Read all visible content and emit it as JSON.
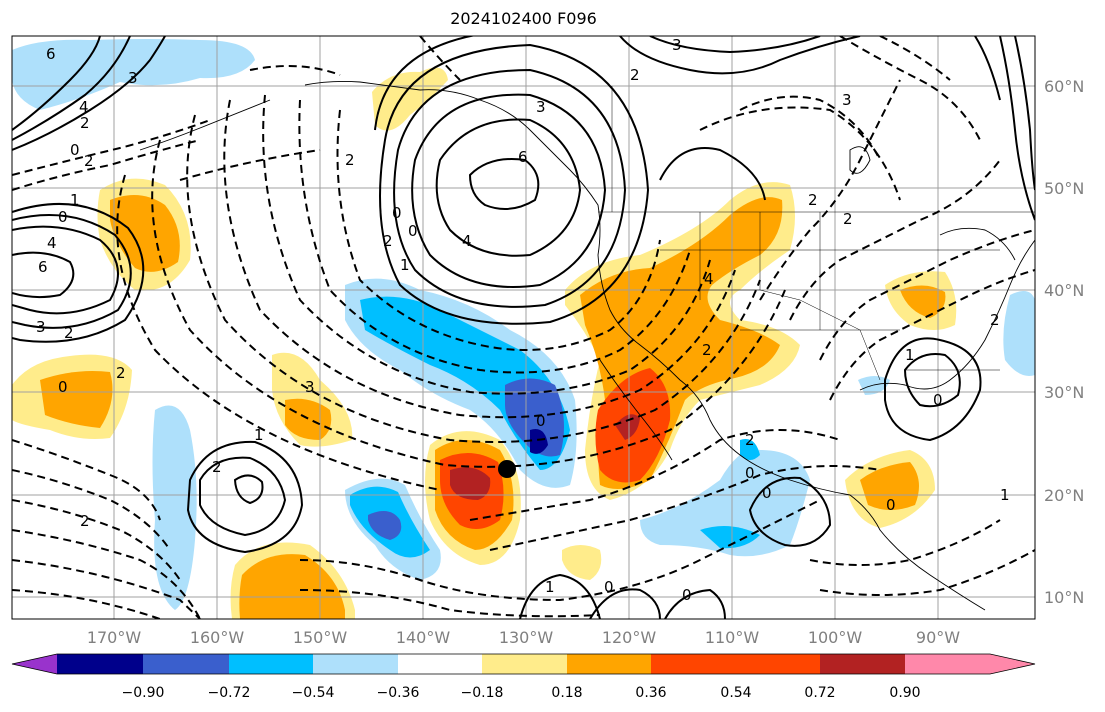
{
  "title": "2024102400 F096",
  "lon_labels": [
    "170°W",
    "160°W",
    "150°W",
    "140°W",
    "130°W",
    "120°W",
    "110°W",
    "100°W",
    "90°W"
  ],
  "lat_labels": [
    "60°N",
    "50°N",
    "40°N",
    "30°N",
    "20°N",
    "10°N"
  ],
  "colorbar": {
    "ticks": [
      "−0.90",
      "−0.72",
      "−0.54",
      "−0.36",
      "−0.18",
      "0.18",
      "0.36",
      "0.54",
      "0.72",
      "0.90"
    ],
    "colors": [
      "#9933cc",
      "#00008b",
      "#3a5fcd",
      "#00bfff",
      "#aee0fb",
      "#ffffff",
      "#ffec8b",
      "#ffa500",
      "#ff4500",
      "#b22222",
      "#ff88aa"
    ]
  },
  "contour_labels": [
    "6",
    "3",
    "4",
    "2",
    "0",
    "2",
    "1",
    "0",
    "4",
    "6",
    "3",
    "2",
    "0",
    "2",
    "1",
    "2",
    "2",
    "3",
    "2",
    "3",
    "6",
    "4",
    "0",
    "0",
    "1",
    "2",
    "2",
    "3",
    "4",
    "0",
    "0",
    "0",
    "0",
    "1",
    "2",
    "2",
    "2",
    "2",
    "1",
    "0",
    "2",
    "3",
    "0",
    "1",
    "0"
  ],
  "marker": "point"
}
